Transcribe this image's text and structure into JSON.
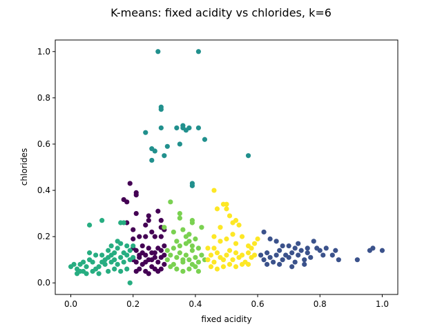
{
  "chart_data": {
    "type": "scatter",
    "title": "K-means: fixed acidity vs chlorides, k=6",
    "xlabel": "fixed acidity",
    "ylabel": "chlorides",
    "xlim": [
      -0.05,
      1.05
    ],
    "ylim": [
      -0.05,
      1.05
    ],
    "x_ticks": [
      "0.0",
      "0.2",
      "0.4",
      "0.6",
      "0.8",
      "1.0"
    ],
    "y_ticks": [
      "0.0",
      "0.2",
      "0.4",
      "0.6",
      "0.8",
      "1.0"
    ],
    "grid": false,
    "legend": "none",
    "clusters": [
      {
        "color": "#440154",
        "points": [
          [
            0.21,
            0.09
          ],
          [
            0.22,
            0.11
          ],
          [
            0.23,
            0.08
          ],
          [
            0.24,
            0.12
          ],
          [
            0.25,
            0.1
          ],
          [
            0.26,
            0.07
          ],
          [
            0.27,
            0.13
          ],
          [
            0.28,
            0.09
          ],
          [
            0.29,
            0.11
          ],
          [
            0.3,
            0.08
          ],
          [
            0.21,
            0.14
          ],
          [
            0.23,
            0.16
          ],
          [
            0.25,
            0.15
          ],
          [
            0.27,
            0.06
          ],
          [
            0.29,
            0.14
          ],
          [
            0.22,
            0.06
          ],
          [
            0.24,
            0.05
          ],
          [
            0.26,
            0.13
          ],
          [
            0.28,
            0.15
          ],
          [
            0.3,
            0.12
          ],
          [
            0.2,
            0.1
          ],
          [
            0.21,
            0.05
          ],
          [
            0.25,
            0.04
          ],
          [
            0.28,
            0.05
          ],
          [
            0.23,
            0.13
          ],
          [
            0.26,
            0.1
          ],
          [
            0.24,
            0.09
          ],
          [
            0.27,
            0.11
          ],
          [
            0.22,
            0.12
          ],
          [
            0.29,
            0.06
          ],
          [
            0.2,
            0.15
          ],
          [
            0.3,
            0.16
          ],
          [
            0.19,
            0.43
          ],
          [
            0.21,
            0.39
          ],
          [
            0.21,
            0.38
          ],
          [
            0.17,
            0.36
          ],
          [
            0.18,
            0.35
          ],
          [
            0.21,
            0.3
          ],
          [
            0.25,
            0.29
          ],
          [
            0.24,
            0.2
          ],
          [
            0.26,
            0.22
          ],
          [
            0.24,
            0.25
          ],
          [
            0.25,
            0.27
          ],
          [
            0.29,
            0.27
          ],
          [
            0.28,
            0.31
          ],
          [
            0.29,
            0.24
          ],
          [
            0.29,
            0.2
          ],
          [
            0.22,
            0.2
          ],
          [
            0.2,
            0.23
          ],
          [
            0.2,
            0.19
          ],
          [
            0.27,
            0.2
          ],
          [
            0.18,
            0.26
          ],
          [
            0.3,
            0.23
          ]
        ]
      },
      {
        "color": "#3b528b",
        "points": [
          [
            0.61,
            0.12
          ],
          [
            0.62,
            0.1
          ],
          [
            0.63,
            0.13
          ],
          [
            0.64,
            0.11
          ],
          [
            0.65,
            0.09
          ],
          [
            0.66,
            0.12
          ],
          [
            0.67,
            0.14
          ],
          [
            0.68,
            0.1
          ],
          [
            0.69,
            0.12
          ],
          [
            0.7,
            0.11
          ],
          [
            0.71,
            0.13
          ],
          [
            0.72,
            0.09
          ],
          [
            0.73,
            0.12
          ],
          [
            0.74,
            0.14
          ],
          [
            0.75,
            0.1
          ],
          [
            0.76,
            0.13
          ],
          [
            0.77,
            0.11
          ],
          [
            0.62,
            0.22
          ],
          [
            0.64,
            0.19
          ],
          [
            0.66,
            0.18
          ],
          [
            0.68,
            0.16
          ],
          [
            0.7,
            0.16
          ],
          [
            0.72,
            0.15
          ],
          [
            0.73,
            0.17
          ],
          [
            0.76,
            0.15
          ],
          [
            0.78,
            0.18
          ],
          [
            0.8,
            0.14
          ],
          [
            0.81,
            0.12
          ],
          [
            0.84,
            0.12
          ],
          [
            0.85,
            0.14
          ],
          [
            0.86,
            0.1
          ],
          [
            0.92,
            0.1
          ],
          [
            0.96,
            0.14
          ],
          [
            0.97,
            0.15
          ],
          [
            1.0,
            0.14
          ],
          [
            0.63,
            0.08
          ],
          [
            0.67,
            0.08
          ],
          [
            0.71,
            0.07
          ],
          [
            0.79,
            0.15
          ],
          [
            0.75,
            0.08
          ],
          [
            0.82,
            0.15
          ]
        ]
      },
      {
        "color": "#21908d",
        "points": [
          [
            0.28,
            1.0
          ],
          [
            0.41,
            1.0
          ],
          [
            0.29,
            0.76
          ],
          [
            0.29,
            0.75
          ],
          [
            0.24,
            0.65
          ],
          [
            0.26,
            0.58
          ],
          [
            0.27,
            0.57
          ],
          [
            0.3,
            0.55
          ],
          [
            0.26,
            0.53
          ],
          [
            0.31,
            0.59
          ],
          [
            0.34,
            0.67
          ],
          [
            0.36,
            0.68
          ],
          [
            0.36,
            0.67
          ],
          [
            0.37,
            0.66
          ],
          [
            0.38,
            0.67
          ],
          [
            0.41,
            0.67
          ],
          [
            0.43,
            0.62
          ],
          [
            0.35,
            0.6
          ],
          [
            0.39,
            0.43
          ],
          [
            0.39,
            0.42
          ],
          [
            0.29,
            0.67
          ],
          [
            0.57,
            0.55
          ]
        ]
      },
      {
        "color": "#27ad81",
        "points": [
          [
            0.0,
            0.07
          ],
          [
            0.01,
            0.08
          ],
          [
            0.02,
            0.06
          ],
          [
            0.03,
            0.08
          ],
          [
            0.04,
            0.05
          ],
          [
            0.05,
            0.07
          ],
          [
            0.06,
            0.13
          ],
          [
            0.06,
            0.1
          ],
          [
            0.07,
            0.09
          ],
          [
            0.08,
            0.06
          ],
          [
            0.08,
            0.12
          ],
          [
            0.09,
            0.07
          ],
          [
            0.1,
            0.09
          ],
          [
            0.1,
            0.12
          ],
          [
            0.11,
            0.08
          ],
          [
            0.11,
            0.1
          ],
          [
            0.12,
            0.11
          ],
          [
            0.12,
            0.14
          ],
          [
            0.13,
            0.09
          ],
          [
            0.13,
            0.12
          ],
          [
            0.14,
            0.1
          ],
          [
            0.14,
            0.13
          ],
          [
            0.15,
            0.08
          ],
          [
            0.15,
            0.15
          ],
          [
            0.16,
            0.11
          ],
          [
            0.16,
            0.17
          ],
          [
            0.17,
            0.09
          ],
          [
            0.17,
            0.13
          ],
          [
            0.18,
            0.12
          ],
          [
            0.18,
            0.16
          ],
          [
            0.19,
            0.1
          ],
          [
            0.19,
            0.14
          ],
          [
            0.2,
            0.11
          ],
          [
            0.2,
            0.16
          ],
          [
            0.06,
            0.25
          ],
          [
            0.1,
            0.27
          ],
          [
            0.16,
            0.26
          ],
          [
            0.17,
            0.26
          ],
          [
            0.19,
            0.0
          ],
          [
            0.05,
            0.04
          ],
          [
            0.03,
            0.05
          ],
          [
            0.07,
            0.05
          ],
          [
            0.02,
            0.04
          ],
          [
            0.12,
            0.05
          ],
          [
            0.14,
            0.06
          ],
          [
            0.16,
            0.05
          ],
          [
            0.18,
            0.06
          ],
          [
            0.09,
            0.04
          ],
          [
            0.04,
            0.09
          ],
          [
            0.13,
            0.16
          ],
          [
            0.15,
            0.18
          ]
        ]
      },
      {
        "color": "#7ad151",
        "points": [
          [
            0.31,
            0.1
          ],
          [
            0.32,
            0.12
          ],
          [
            0.33,
            0.08
          ],
          [
            0.34,
            0.11
          ],
          [
            0.35,
            0.13
          ],
          [
            0.36,
            0.09
          ],
          [
            0.37,
            0.12
          ],
          [
            0.38,
            0.1
          ],
          [
            0.39,
            0.14
          ],
          [
            0.4,
            0.11
          ],
          [
            0.41,
            0.09
          ],
          [
            0.42,
            0.12
          ],
          [
            0.33,
            0.15
          ],
          [
            0.35,
            0.16
          ],
          [
            0.37,
            0.17
          ],
          [
            0.39,
            0.16
          ],
          [
            0.41,
            0.15
          ],
          [
            0.34,
            0.06
          ],
          [
            0.36,
            0.05
          ],
          [
            0.38,
            0.06
          ],
          [
            0.4,
            0.07
          ],
          [
            0.32,
            0.07
          ],
          [
            0.43,
            0.1
          ],
          [
            0.31,
            0.14
          ],
          [
            0.34,
            0.18
          ],
          [
            0.38,
            0.18
          ],
          [
            0.32,
            0.35
          ],
          [
            0.35,
            0.3
          ],
          [
            0.35,
            0.28
          ],
          [
            0.33,
            0.22
          ],
          [
            0.37,
            0.2
          ],
          [
            0.39,
            0.27
          ],
          [
            0.39,
            0.26
          ],
          [
            0.42,
            0.24
          ],
          [
            0.36,
            0.23
          ],
          [
            0.38,
            0.21
          ],
          [
            0.4,
            0.19
          ],
          [
            0.3,
            0.24
          ],
          [
            0.36,
            0.1
          ],
          [
            0.39,
            0.08
          ],
          [
            0.41,
            0.05
          ]
        ]
      },
      {
        "color": "#fde725",
        "points": [
          [
            0.44,
            0.1
          ],
          [
            0.45,
            0.12
          ],
          [
            0.46,
            0.09
          ],
          [
            0.47,
            0.13
          ],
          [
            0.48,
            0.11
          ],
          [
            0.49,
            0.1
          ],
          [
            0.5,
            0.12
          ],
          [
            0.51,
            0.14
          ],
          [
            0.52,
            0.1
          ],
          [
            0.53,
            0.13
          ],
          [
            0.54,
            0.11
          ],
          [
            0.55,
            0.12
          ],
          [
            0.56,
            0.09
          ],
          [
            0.57,
            0.13
          ],
          [
            0.58,
            0.11
          ],
          [
            0.59,
            0.12
          ],
          [
            0.46,
            0.4
          ],
          [
            0.47,
            0.32
          ],
          [
            0.49,
            0.34
          ],
          [
            0.5,
            0.34
          ],
          [
            0.5,
            0.32
          ],
          [
            0.51,
            0.29
          ],
          [
            0.52,
            0.26
          ],
          [
            0.53,
            0.27
          ],
          [
            0.54,
            0.25
          ],
          [
            0.48,
            0.24
          ],
          [
            0.46,
            0.2
          ],
          [
            0.48,
            0.18
          ],
          [
            0.5,
            0.19
          ],
          [
            0.52,
            0.21
          ],
          [
            0.53,
            0.17
          ],
          [
            0.55,
            0.2
          ],
          [
            0.57,
            0.16
          ],
          [
            0.59,
            0.17
          ],
          [
            0.6,
            0.19
          ],
          [
            0.45,
            0.07
          ],
          [
            0.47,
            0.06
          ],
          [
            0.49,
            0.07
          ],
          [
            0.51,
            0.08
          ],
          [
            0.53,
            0.07
          ],
          [
            0.55,
            0.08
          ],
          [
            0.57,
            0.08
          ],
          [
            0.44,
            0.15
          ],
          [
            0.46,
            0.15
          ],
          [
            0.58,
            0.15
          ]
        ]
      }
    ]
  }
}
